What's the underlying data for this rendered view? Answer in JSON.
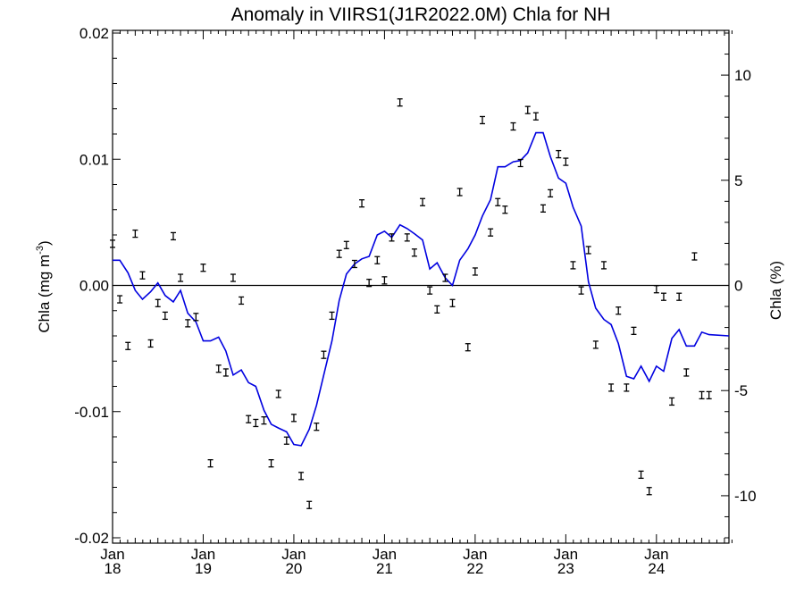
{
  "chart_data": {
    "type": "scatter",
    "title": "Anomaly in VIIRS1(J1R2022.0M) Chla for NH",
    "ylabel_left": "Chla (mg m",
    "ylabel_left_sup": "-3",
    "ylabel_left_close": ")",
    "ylabel_right": "Chla (%)",
    "ylim_left": [
      -0.02,
      0.02
    ],
    "ylim_right": [
      -12,
      12
    ],
    "xlim": [
      2018.0,
      2024.8
    ],
    "y_ticks_left": [
      "0.02",
      "0.01",
      "0.00",
      "-0.01",
      "-0.02"
    ],
    "y_ticks_right": [
      "10",
      "5",
      "0",
      "-5",
      "-10"
    ],
    "x_ticks": [
      {
        "month": "Jan",
        "year": "18"
      },
      {
        "month": "Jan",
        "year": "19"
      },
      {
        "month": "Jan",
        "year": "20"
      },
      {
        "month": "Jan",
        "year": "21"
      },
      {
        "month": "Jan",
        "year": "22"
      },
      {
        "month": "Jan",
        "year": "23"
      },
      {
        "month": "Jan",
        "year": "24"
      }
    ],
    "line_color": "#0000e0",
    "point_color": "#000000",
    "monthly_points": [
      [
        2018.0,
        0.0033
      ],
      [
        2018.08,
        -0.0011
      ],
      [
        2018.17,
        -0.0048
      ],
      [
        2018.25,
        0.0041
      ],
      [
        2018.33,
        0.0008
      ],
      [
        2018.42,
        -0.0046
      ],
      [
        2018.5,
        -0.0014
      ],
      [
        2018.58,
        -0.0024
      ],
      [
        2018.67,
        0.0039
      ],
      [
        2018.75,
        0.0006
      ],
      [
        2018.83,
        -0.003
      ],
      [
        2018.92,
        -0.0025
      ],
      [
        2019.0,
        0.0014
      ],
      [
        2019.08,
        -0.0141
      ],
      [
        2019.17,
        -0.0066
      ],
      [
        2019.25,
        -0.0069
      ],
      [
        2019.33,
        0.0006
      ],
      [
        2019.42,
        -0.0012
      ],
      [
        2019.5,
        -0.0106
      ],
      [
        2019.58,
        -0.0109
      ],
      [
        2019.67,
        -0.0107
      ],
      [
        2019.75,
        -0.0141
      ],
      [
        2019.83,
        -0.0086
      ],
      [
        2019.92,
        -0.0123
      ],
      [
        2020.0,
        -0.0105
      ],
      [
        2020.08,
        -0.0151
      ],
      [
        2020.17,
        -0.0174
      ],
      [
        2020.25,
        -0.0112
      ],
      [
        2020.33,
        -0.0055
      ],
      [
        2020.42,
        -0.0024
      ],
      [
        2020.5,
        0.0025
      ],
      [
        2020.58,
        0.0032
      ],
      [
        2020.67,
        0.0017
      ],
      [
        2020.75,
        0.0065
      ],
      [
        2020.83,
        0.0002
      ],
      [
        2020.92,
        0.002
      ],
      [
        2021.0,
        0.0004
      ],
      [
        2021.08,
        0.0038
      ],
      [
        2021.17,
        0.0145
      ],
      [
        2021.25,
        0.0038
      ],
      [
        2021.33,
        0.0026
      ],
      [
        2021.42,
        0.0066
      ],
      [
        2021.5,
        -0.0004
      ],
      [
        2021.58,
        -0.0019
      ],
      [
        2021.67,
        0.0006
      ],
      [
        2021.75,
        -0.0014
      ],
      [
        2021.83,
        0.0074
      ],
      [
        2021.92,
        -0.0049
      ],
      [
        2022.0,
        0.0011
      ],
      [
        2022.08,
        0.0131
      ],
      [
        2022.17,
        0.0042
      ],
      [
        2022.25,
        0.0066
      ],
      [
        2022.33,
        0.006
      ],
      [
        2022.42,
        0.0126
      ],
      [
        2022.5,
        0.0097
      ],
      [
        2022.58,
        0.0139
      ],
      [
        2022.67,
        0.0134
      ],
      [
        2022.75,
        0.0061
      ],
      [
        2022.83,
        0.0073
      ],
      [
        2022.92,
        0.0104
      ],
      [
        2023.0,
        0.0098
      ],
      [
        2023.08,
        0.0016
      ],
      [
        2023.17,
        -0.0004
      ],
      [
        2023.25,
        0.0028
      ],
      [
        2023.33,
        -0.0047
      ],
      [
        2023.42,
        0.0016
      ],
      [
        2023.5,
        -0.0081
      ],
      [
        2023.58,
        -0.002
      ],
      [
        2023.67,
        -0.0081
      ],
      [
        2023.75,
        -0.0036
      ],
      [
        2023.83,
        -0.015
      ],
      [
        2023.92,
        -0.0163
      ],
      [
        2024.0,
        -0.0003
      ],
      [
        2024.08,
        -0.0009
      ],
      [
        2024.17,
        -0.0092
      ],
      [
        2024.25,
        -0.0009
      ],
      [
        2024.33,
        -0.0069
      ],
      [
        2024.42,
        0.0023
      ],
      [
        2024.5,
        -0.0087
      ],
      [
        2024.58,
        -0.0087
      ]
    ],
    "running_mean": [
      [
        2018.0,
        0.002
      ],
      [
        2018.08,
        0.002
      ],
      [
        2018.17,
        0.001
      ],
      [
        2018.25,
        -0.0004
      ],
      [
        2018.33,
        -0.0011
      ],
      [
        2018.42,
        -0.0005
      ],
      [
        2018.5,
        0.0002
      ],
      [
        2018.58,
        -0.0008
      ],
      [
        2018.67,
        -0.0013
      ],
      [
        2018.75,
        -0.0004
      ],
      [
        2018.83,
        -0.0022
      ],
      [
        2018.92,
        -0.0029
      ],
      [
        2019.0,
        -0.0044
      ],
      [
        2019.08,
        -0.0044
      ],
      [
        2019.17,
        -0.0041
      ],
      [
        2019.25,
        -0.0052
      ],
      [
        2019.33,
        -0.0071
      ],
      [
        2019.42,
        -0.0067
      ],
      [
        2019.5,
        -0.0077
      ],
      [
        2019.58,
        -0.008
      ],
      [
        2019.67,
        -0.0099
      ],
      [
        2019.75,
        -0.011
      ],
      [
        2019.83,
        -0.0113
      ],
      [
        2019.92,
        -0.0116
      ],
      [
        2020.0,
        -0.0126
      ],
      [
        2020.08,
        -0.0127
      ],
      [
        2020.17,
        -0.0114
      ],
      [
        2020.25,
        -0.0095
      ],
      [
        2020.33,
        -0.0071
      ],
      [
        2020.42,
        -0.0044
      ],
      [
        2020.5,
        -0.0012
      ],
      [
        2020.58,
        0.0009
      ],
      [
        2020.67,
        0.0017
      ],
      [
        2020.75,
        0.0021
      ],
      [
        2020.83,
        0.0023
      ],
      [
        2020.92,
        0.004
      ],
      [
        2021.0,
        0.0043
      ],
      [
        2021.08,
        0.0038
      ],
      [
        2021.17,
        0.0048
      ],
      [
        2021.25,
        0.0045
      ],
      [
        2021.33,
        0.0041
      ],
      [
        2021.42,
        0.0036
      ],
      [
        2021.5,
        0.0013
      ],
      [
        2021.58,
        0.0018
      ],
      [
        2021.67,
        0.0006
      ],
      [
        2021.75,
        0.0
      ],
      [
        2021.83,
        0.002
      ],
      [
        2021.92,
        0.0029
      ],
      [
        2022.0,
        0.004
      ],
      [
        2022.08,
        0.0055
      ],
      [
        2022.17,
        0.0068
      ],
      [
        2022.25,
        0.0094
      ],
      [
        2022.33,
        0.0094
      ],
      [
        2022.42,
        0.0098
      ],
      [
        2022.5,
        0.0099
      ],
      [
        2022.58,
        0.0105
      ],
      [
        2022.67,
        0.0121
      ],
      [
        2022.75,
        0.0121
      ],
      [
        2022.83,
        0.0102
      ],
      [
        2022.92,
        0.0085
      ],
      [
        2023.0,
        0.0081
      ],
      [
        2023.08,
        0.0062
      ],
      [
        2023.17,
        0.0047
      ],
      [
        2023.25,
        0.0003
      ],
      [
        2023.33,
        -0.0018
      ],
      [
        2023.42,
        -0.0027
      ],
      [
        2023.5,
        -0.0031
      ],
      [
        2023.58,
        -0.0046
      ],
      [
        2023.67,
        -0.0072
      ],
      [
        2023.75,
        -0.0074
      ],
      [
        2023.83,
        -0.0064
      ],
      [
        2023.92,
        -0.0076
      ],
      [
        2024.0,
        -0.0064
      ],
      [
        2024.08,
        -0.0068
      ],
      [
        2024.17,
        -0.0042
      ],
      [
        2024.25,
        -0.0035
      ],
      [
        2024.33,
        -0.0048
      ],
      [
        2024.42,
        -0.0048
      ],
      [
        2024.5,
        -0.0037
      ],
      [
        2024.58,
        -0.0039
      ],
      [
        2024.8,
        -0.004
      ]
    ]
  }
}
